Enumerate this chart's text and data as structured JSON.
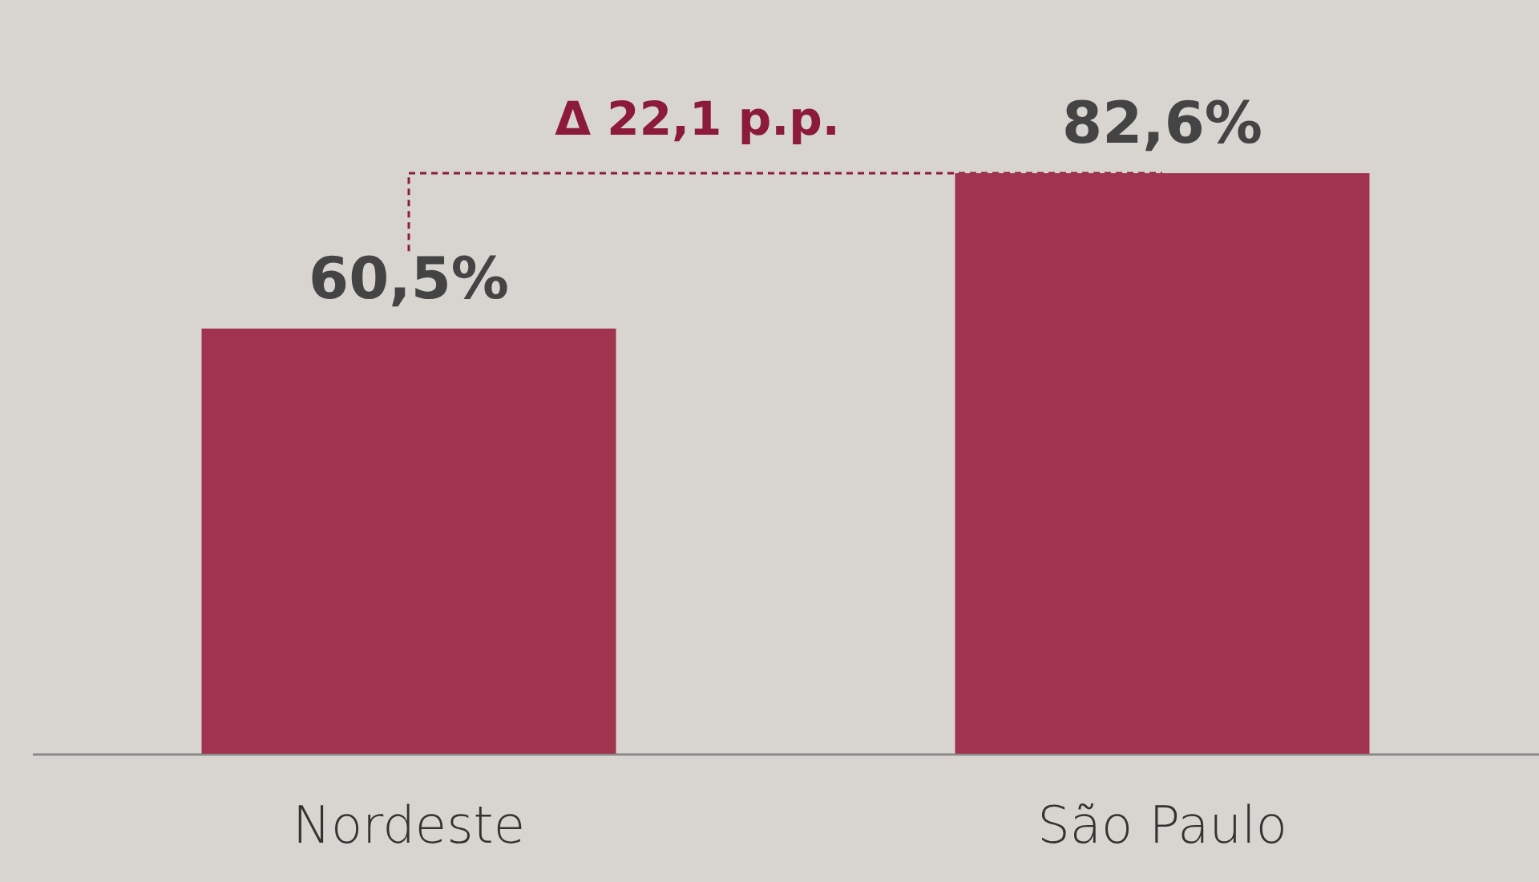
{
  "chart_data": {
    "type": "bar",
    "categories": [
      "Nordeste",
      "São Paulo"
    ],
    "values": [
      60.5,
      82.6
    ],
    "color": "#a0344f",
    "value_labels": [
      "60,5%",
      "82,6%"
    ],
    "annotations": [
      "Δ 22,1 p.p."
    ]
  }
}
